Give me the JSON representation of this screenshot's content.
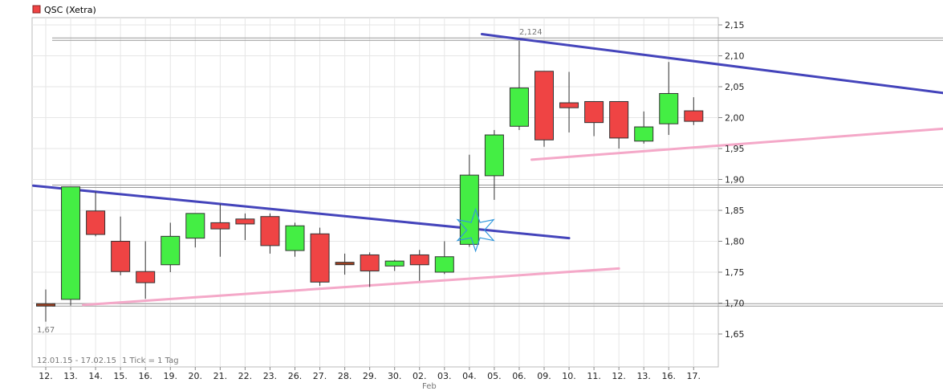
{
  "chart_data": {
    "type": "candlestick",
    "title": "QSC (Xetra)",
    "legend": [
      {
        "name": "QSC (Xetra)",
        "color": "#ef4444"
      }
    ],
    "period_label": "12.01.15 - 17.02.15",
    "tick_label": "1 Tick = 1 Tag",
    "month_label": "Feb",
    "categories": [
      "12.",
      "13.",
      "14.",
      "15.",
      "16.",
      "19.",
      "20.",
      "21.",
      "22.",
      "23.",
      "26.",
      "27.",
      "28.",
      "29.",
      "30.",
      "02.",
      "03.",
      "04.",
      "05.",
      "06.",
      "09.",
      "10.",
      "11.",
      "12.",
      "13.",
      "16.",
      "17."
    ],
    "ohlc": [
      [
        1.699,
        1.722,
        1.67,
        1.696
      ],
      [
        1.706,
        1.888,
        1.696,
        1.888
      ],
      [
        1.849,
        1.88,
        1.808,
        1.811
      ],
      [
        1.8,
        1.84,
        1.745,
        1.751
      ],
      [
        1.751,
        1.8,
        1.707,
        1.733
      ],
      [
        1.762,
        1.83,
        1.75,
        1.808
      ],
      [
        1.805,
        1.845,
        1.79,
        1.845
      ],
      [
        1.83,
        1.86,
        1.775,
        1.82
      ],
      [
        1.836,
        1.845,
        1.802,
        1.828
      ],
      [
        1.84,
        1.845,
        1.78,
        1.793
      ],
      [
        1.785,
        1.83,
        1.775,
        1.825
      ],
      [
        1.812,
        1.822,
        1.728,
        1.734
      ],
      [
        1.766,
        1.78,
        1.746,
        1.765
      ],
      [
        1.778,
        1.782,
        1.726,
        1.752
      ],
      [
        1.76,
        1.77,
        1.752,
        1.768
      ],
      [
        1.778,
        1.786,
        1.736,
        1.762
      ],
      [
        1.75,
        1.8,
        1.747,
        1.775
      ],
      [
        1.795,
        1.94,
        1.791,
        1.907
      ],
      [
        1.906,
        1.98,
        1.867,
        1.972
      ],
      [
        1.986,
        2.124,
        1.98,
        2.048
      ],
      [
        2.075,
        2.075,
        1.953,
        1.964
      ],
      [
        2.024,
        2.074,
        1.976,
        2.016
      ],
      [
        2.026,
        2.026,
        1.97,
        1.992
      ],
      [
        2.026,
        2.026,
        1.95,
        1.967
      ],
      [
        1.962,
        2.01,
        1.958,
        1.985
      ],
      [
        1.99,
        2.09,
        1.972,
        2.039
      ],
      [
        2.011,
        2.033,
        1.988,
        1.994
      ]
    ],
    "colors": {
      "up": "#44ee44",
      "down": "#ef4444",
      "flat": "#a04020",
      "trend_down": "#4444bb",
      "trend_up": "#f4a8c8",
      "support": "#888888",
      "marker": "#3399dd"
    },
    "y_ticks": [
      "2,15",
      "2,10",
      "2,05",
      "2,00",
      "1,95",
      "1,90",
      "1,85",
      "1,80",
      "1,75",
      "1,70",
      "1,65"
    ],
    "ylim": [
      1.6,
      2.17
    ],
    "annotations": {
      "high": "2,124",
      "low": "1,67"
    },
    "trendlines": [
      {
        "kind": "down",
        "from": [
          -0.5,
          1.89
        ],
        "to": [
          21.0,
          1.805
        ]
      },
      {
        "kind": "up",
        "from": [
          1.5,
          1.697
        ],
        "to": [
          23.0,
          1.756
        ]
      },
      {
        "kind": "down",
        "from": [
          17.5,
          2.135
        ],
        "to": [
          36.0,
          2.04
        ]
      },
      {
        "kind": "up",
        "from": [
          19.5,
          1.932
        ],
        "to": [
          36.0,
          1.982
        ]
      }
    ],
    "support_lines": [
      1.697,
      1.889,
      2.127
    ],
    "marker": {
      "x": 17.25,
      "y": 1.818
    },
    "grid": true
  }
}
